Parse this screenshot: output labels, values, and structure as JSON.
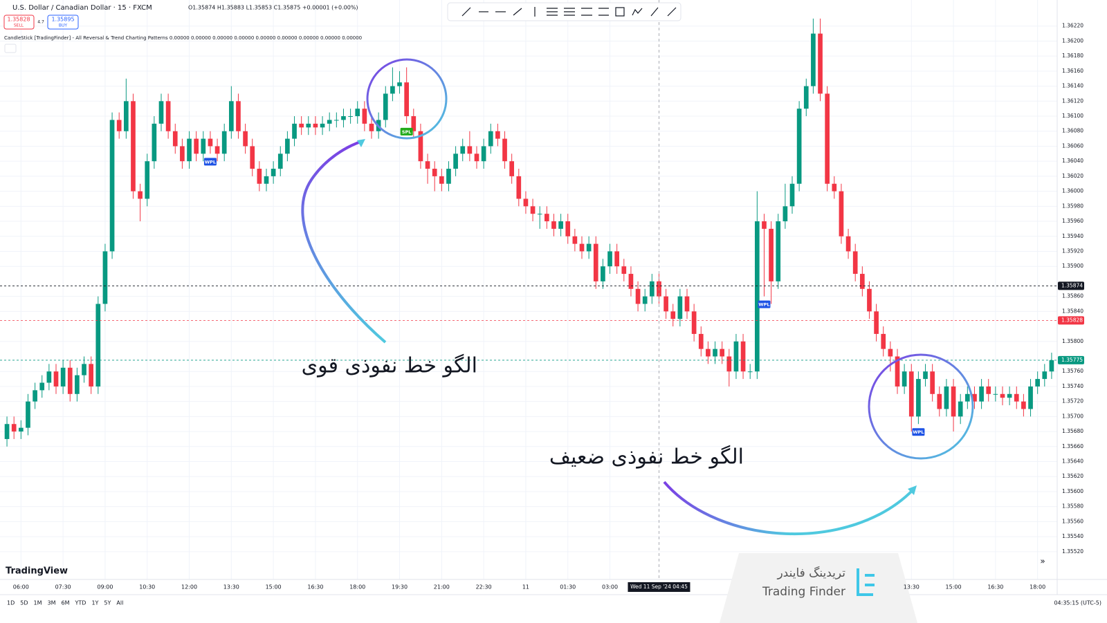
{
  "ui": {
    "symbol": "U.S. Dollar / Canadian Dollar · 15 · FXCM",
    "ohlc": "O1.35874 H1.35883 L1.35853 C1.35875 +0.00001 (+0.00%)",
    "sell_price": "1.35828",
    "sell": "SELL",
    "spread": "4.7",
    "buy_price": "1.35895",
    "buy": "BUY",
    "indicator": "CandleStick [TradingFinder] - All Reversal & Trend Charting Patterns 0.00000 0.00000 0.00000 0.00000 0.00000 0.00000 0.00000 0.00000 0.00000",
    "logo": "TradingView",
    "periods": [
      "1D",
      "5D",
      "1M",
      "3M",
      "6M",
      "YTD",
      "1Y",
      "5Y",
      "All"
    ],
    "clock": "04:35:15 (UTC-5)",
    "watermark_fa": "تریدینگ فایندر",
    "watermark_en": "Trading Finder"
  },
  "chart_data": {
    "type": "candlestick",
    "up_color": "#089981",
    "down_color": "#f23645",
    "grid": true,
    "open": [
      1.3567,
      1.3569,
      1.3568,
      1.35685,
      1.3572,
      1.35735,
      1.35745,
      1.3576,
      1.3574,
      1.35765,
      1.3573,
      1.35755,
      1.3577,
      1.3574,
      1.3585,
      1.3592,
      1.36095,
      1.3608,
      1.3612,
      1.36,
      1.3599,
      1.3604,
      1.3609,
      1.3612,
      1.3608,
      1.3606,
      1.3604,
      1.3607,
      1.3605,
      1.3607,
      1.3606,
      1.3605,
      1.3608,
      1.3612,
      1.3608,
      1.3606,
      1.3603,
      1.3601,
      1.3602,
      1.3603,
      1.3605,
      1.3607,
      1.3609,
      1.36085,
      1.3609,
      1.36085,
      1.3609,
      1.36095,
      1.36095,
      1.361,
      1.361,
      1.3611,
      1.3609,
      1.3608,
      1.36095,
      1.3613,
      1.3614,
      1.36145,
      1.361,
      1.3608,
      1.3604,
      1.3603,
      1.3602,
      1.3601,
      1.3603,
      1.3605,
      1.3606,
      1.3605,
      1.3604,
      1.3606,
      1.3608,
      1.3607,
      1.3604,
      1.3602,
      1.3599,
      1.3598,
      1.3597,
      1.3597,
      1.3596,
      1.3595,
      1.3596,
      1.3594,
      1.3593,
      1.3592,
      1.3593,
      1.3588,
      1.359,
      1.3592,
      1.359,
      1.3589,
      1.3587,
      1.3585,
      1.3586,
      1.3588,
      1.3586,
      1.3584,
      1.3583,
      1.3586,
      1.3584,
      1.3581,
      1.3579,
      1.3578,
      1.3579,
      1.3578,
      1.3576,
      1.358,
      1.3576,
      1.3576,
      1.3596,
      1.3595,
      1.3588,
      1.3596,
      1.3598,
      1.3601,
      1.3611,
      1.3614,
      1.3621,
      1.3613,
      1.3601,
      1.36,
      1.3594,
      1.3592,
      1.3589,
      1.3587,
      1.3584,
      1.3581,
      1.3579,
      1.3578,
      1.3574,
      1.3576,
      1.357,
      1.3575,
      1.3576,
      1.3573,
      1.3571,
      1.3574,
      1.357,
      1.3572,
      1.3573,
      1.3572,
      1.3574,
      1.3573,
      1.3573,
      1.35725,
      1.3573,
      1.3572,
      1.3571,
      1.3574,
      1.3575,
      1.3576
    ],
    "high": [
      1.357,
      1.357,
      1.35695,
      1.3573,
      1.35745,
      1.35755,
      1.3577,
      1.3577,
      1.35775,
      1.35775,
      1.35765,
      1.3578,
      1.3578,
      1.3586,
      1.3593,
      1.36105,
      1.36105,
      1.3615,
      1.3613,
      1.3601,
      1.3605,
      1.361,
      1.3613,
      1.3613,
      1.3609,
      1.3607,
      1.3608,
      1.3608,
      1.3608,
      1.3608,
      1.3607,
      1.3609,
      1.3614,
      1.3613,
      1.3609,
      1.3607,
      1.3604,
      1.3603,
      1.3604,
      1.3606,
      1.3608,
      1.361,
      1.361,
      1.361,
      1.361,
      1.361,
      1.36105,
      1.36105,
      1.3611,
      1.3611,
      1.3612,
      1.3612,
      1.361,
      1.36105,
      1.3614,
      1.36165,
      1.3616,
      1.36165,
      1.3611,
      1.3609,
      1.3605,
      1.3604,
      1.3603,
      1.3604,
      1.3606,
      1.3607,
      1.3608,
      1.3606,
      1.3607,
      1.3609,
      1.3609,
      1.3608,
      1.3605,
      1.3603,
      1.36,
      1.3599,
      1.3598,
      1.3598,
      1.3597,
      1.3597,
      1.3597,
      1.3595,
      1.3594,
      1.3594,
      1.3594,
      1.3591,
      1.3593,
      1.3593,
      1.3591,
      1.359,
      1.3588,
      1.3587,
      1.3589,
      1.3589,
      1.3587,
      1.3585,
      1.3587,
      1.3587,
      1.3585,
      1.3582,
      1.358,
      1.358,
      1.358,
      1.3579,
      1.3581,
      1.3581,
      1.3577,
      1.36,
      1.3597,
      1.3596,
      1.3597,
      1.3601,
      1.3602,
      1.3612,
      1.3615,
      1.3623,
      1.3623,
      1.3614,
      1.3602,
      1.3601,
      1.3595,
      1.3593,
      1.359,
      1.3588,
      1.3585,
      1.3582,
      1.358,
      1.3579,
      1.3577,
      1.3577,
      1.3576,
      1.3577,
      1.3577,
      1.3574,
      1.3575,
      1.3575,
      1.3573,
      1.3574,
      1.3574,
      1.3575,
      1.3575,
      1.3574,
      1.3574,
      1.3574,
      1.3574,
      1.3573,
      1.3575,
      1.3576,
      1.3577,
      1.35785
    ],
    "low": [
      1.3566,
      1.3567,
      1.3567,
      1.35675,
      1.3571,
      1.35725,
      1.35735,
      1.3573,
      1.3573,
      1.3572,
      1.3572,
      1.35745,
      1.3573,
      1.3573,
      1.3584,
      1.3591,
      1.3607,
      1.3607,
      1.3599,
      1.3596,
      1.3598,
      1.3603,
      1.3608,
      1.3607,
      1.3605,
      1.3603,
      1.3603,
      1.3604,
      1.3604,
      1.3605,
      1.3604,
      1.3604,
      1.3607,
      1.3607,
      1.3605,
      1.3602,
      1.36,
      1.36,
      1.3601,
      1.3602,
      1.3604,
      1.3606,
      1.36075,
      1.36075,
      1.36075,
      1.36075,
      1.3608,
      1.36085,
      1.36085,
      1.3609,
      1.3609,
      1.3608,
      1.3607,
      1.3607,
      1.36085,
      1.3612,
      1.3613,
      1.3609,
      1.3607,
      1.3603,
      1.3601,
      1.36,
      1.36,
      1.36,
      1.3602,
      1.3604,
      1.3604,
      1.3603,
      1.3603,
      1.3605,
      1.3606,
      1.3603,
      1.3601,
      1.3598,
      1.3597,
      1.3596,
      1.3595,
      1.3595,
      1.3594,
      1.3594,
      1.3593,
      1.3592,
      1.3591,
      1.3591,
      1.3587,
      1.3587,
      1.3589,
      1.3589,
      1.3588,
      1.3586,
      1.3584,
      1.3584,
      1.3585,
      1.3585,
      1.3583,
      1.3582,
      1.3582,
      1.3583,
      1.358,
      1.3578,
      1.3577,
      1.3577,
      1.3577,
      1.3574,
      1.3575,
      1.3575,
      1.3575,
      1.3575,
      1.3586,
      1.3585,
      1.3587,
      1.3595,
      1.3597,
      1.36,
      1.361,
      1.3613,
      1.3612,
      1.36,
      1.3599,
      1.3593,
      1.3591,
      1.3588,
      1.3586,
      1.3583,
      1.358,
      1.3578,
      1.3576,
      1.3573,
      1.3573,
      1.3568,
      1.3569,
      1.3574,
      1.3572,
      1.357,
      1.357,
      1.3568,
      1.3569,
      1.3571,
      1.3571,
      1.3571,
      1.3572,
      1.3572,
      1.35715,
      1.35715,
      1.3571,
      1.357,
      1.357,
      1.3573,
      1.3574,
      1.3575
    ],
    "close": [
      1.3569,
      1.3568,
      1.35685,
      1.3572,
      1.35735,
      1.35745,
      1.3576,
      1.3574,
      1.35765,
      1.3573,
      1.35755,
      1.3577,
      1.3574,
      1.3585,
      1.3592,
      1.36095,
      1.3608,
      1.3612,
      1.36,
      1.3599,
      1.3604,
      1.3609,
      1.3612,
      1.3608,
      1.3606,
      1.3604,
      1.3607,
      1.3605,
      1.3607,
      1.3606,
      1.3605,
      1.3608,
      1.3612,
      1.3608,
      1.3606,
      1.3603,
      1.3601,
      1.3602,
      1.3603,
      1.3605,
      1.3607,
      1.3609,
      1.36085,
      1.3609,
      1.36085,
      1.3609,
      1.36095,
      1.36095,
      1.361,
      1.361,
      1.3611,
      1.3609,
      1.3608,
      1.36095,
      1.3613,
      1.3614,
      1.36145,
      1.361,
      1.3608,
      1.3604,
      1.3603,
      1.3602,
      1.3601,
      1.3603,
      1.3605,
      1.3606,
      1.3605,
      1.3604,
      1.3606,
      1.3608,
      1.3607,
      1.3604,
      1.3602,
      1.3599,
      1.3598,
      1.3597,
      1.3597,
      1.3596,
      1.3595,
      1.3596,
      1.3594,
      1.3593,
      1.3592,
      1.3593,
      1.3588,
      1.359,
      1.3592,
      1.359,
      1.3589,
      1.3587,
      1.3585,
      1.3586,
      1.3588,
      1.3586,
      1.3584,
      1.3583,
      1.3586,
      1.3584,
      1.3581,
      1.3579,
      1.3578,
      1.3579,
      1.3578,
      1.3576,
      1.358,
      1.3576,
      1.3576,
      1.3596,
      1.3595,
      1.3588,
      1.3596,
      1.3598,
      1.3601,
      1.3611,
      1.3614,
      1.3621,
      1.3613,
      1.3601,
      1.36,
      1.3594,
      1.3592,
      1.3589,
      1.3587,
      1.3584,
      1.3581,
      1.3579,
      1.3578,
      1.3574,
      1.3576,
      1.357,
      1.3575,
      1.3576,
      1.3573,
      1.3571,
      1.3574,
      1.357,
      1.3572,
      1.3573,
      1.3572,
      1.3574,
      1.3573,
      1.3573,
      1.35725,
      1.3573,
      1.3572,
      1.3571,
      1.3574,
      1.3575,
      1.3576,
      1.35775
    ],
    "xlim": [
      -0.5,
      149.5
    ],
    "xticks": [
      {
        "value": 2,
        "label": "06:00"
      },
      {
        "value": 8,
        "label": "07:30"
      },
      {
        "value": 14,
        "label": "09:00"
      },
      {
        "value": 20,
        "label": "10:30"
      },
      {
        "value": 26,
        "label": "12:00"
      },
      {
        "value": 32,
        "label": "13:30"
      },
      {
        "value": 38,
        "label": "15:00"
      },
      {
        "value": 44,
        "label": "16:30"
      },
      {
        "value": 50,
        "label": "18:00"
      },
      {
        "value": 56,
        "label": "19:30"
      },
      {
        "value": 62,
        "label": "21:00"
      },
      {
        "value": 68,
        "label": "22:30"
      },
      {
        "value": 74,
        "label": "11"
      },
      {
        "value": 80,
        "label": "01:30"
      },
      {
        "value": 86,
        "label": "03:00"
      },
      {
        "value": 129,
        "label": "13:30"
      },
      {
        "value": 135,
        "label": "15:00"
      },
      {
        "value": 141,
        "label": "16:30"
      },
      {
        "value": 147,
        "label": "18:00"
      }
    ],
    "ylim": [
      1.35483,
      1.3624
    ],
    "yticks": [
      {
        "value": 1.3622,
        "label": "1.36220"
      },
      {
        "value": 1.362,
        "label": "1.36200"
      },
      {
        "value": 1.3618,
        "label": "1.36180"
      },
      {
        "value": 1.3616,
        "label": "1.36160"
      },
      {
        "value": 1.3614,
        "label": "1.36140"
      },
      {
        "value": 1.3612,
        "label": "1.36120"
      },
      {
        "value": 1.361,
        "label": "1.36100"
      },
      {
        "value": 1.3608,
        "label": "1.36080"
      },
      {
        "value": 1.3606,
        "label": "1.36060"
      },
      {
        "value": 1.3604,
        "label": "1.36040"
      },
      {
        "value": 1.3602,
        "label": "1.36020"
      },
      {
        "value": 1.36,
        "label": "1.36000"
      },
      {
        "value": 1.3598,
        "label": "1.35980"
      },
      {
        "value": 1.3596,
        "label": "1.35960"
      },
      {
        "value": 1.3594,
        "label": "1.35940"
      },
      {
        "value": 1.3592,
        "label": "1.35920"
      },
      {
        "value": 1.359,
        "label": "1.35900"
      },
      {
        "value": 1.3586,
        "label": "1.35860"
      },
      {
        "value": 1.3584,
        "label": "1.35840"
      },
      {
        "value": 1.358,
        "label": "1.35800"
      },
      {
        "value": 1.3576,
        "label": "1.35760"
      },
      {
        "value": 1.3574,
        "label": "1.35740"
      },
      {
        "value": 1.3572,
        "label": "1.35720"
      },
      {
        "value": 1.357,
        "label": "1.35700"
      },
      {
        "value": 1.3568,
        "label": "1.35680"
      },
      {
        "value": 1.3566,
        "label": "1.35660"
      },
      {
        "value": 1.3564,
        "label": "1.35640"
      },
      {
        "value": 1.3562,
        "label": "1.35620"
      },
      {
        "value": 1.356,
        "label": "1.35600"
      },
      {
        "value": 1.3558,
        "label": "1.35580"
      },
      {
        "value": 1.3556,
        "label": "1.35560"
      },
      {
        "value": 1.3554,
        "label": "1.35540"
      },
      {
        "value": 1.3552,
        "label": "1.35520"
      }
    ],
    "price_lines": [
      {
        "value": 1.35874,
        "color": "#131722"
      },
      {
        "value": 1.35828,
        "color": "#f23645"
      },
      {
        "value": 1.35775,
        "color": "#089981"
      }
    ],
    "crosshair": {
      "x": 93,
      "label": "Wed 11 Sep '24  04:45"
    },
    "patterns": [
      {
        "label": "WPL",
        "candle": 29,
        "color": "#1e53e5"
      },
      {
        "label": "SPL",
        "candle": 57,
        "color": "#22ab1a"
      },
      {
        "label": "WPL",
        "candle": 108,
        "color": "#1e53e5"
      },
      {
        "label": "WPL",
        "candle": 130,
        "color": "#1e53e5"
      }
    ],
    "annotations": [
      "الگو خط نفوذی قوی",
      "الگو خط نفوذی ضعیف"
    ]
  }
}
